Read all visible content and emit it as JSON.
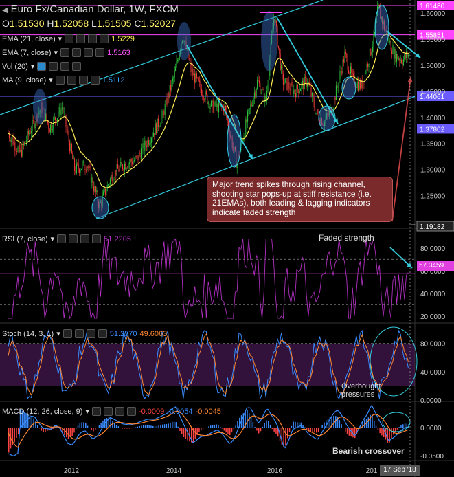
{
  "header": {
    "symbol": "Euro Fx/Canadian Dollar, 1W, FXCM",
    "open_label": "O",
    "open": "1.51530",
    "high_label": "H",
    "high": "1.52058",
    "low_label": "L",
    "low": "1.51505",
    "close_label": "C",
    "close": "1.52027"
  },
  "indicators": {
    "ema21": {
      "label": "EMA (21, close)",
      "value": "1.5229"
    },
    "ema7": {
      "label": "EMA (7, close)",
      "value": "1.5163"
    },
    "vol": {
      "label": "Vol (20)"
    },
    "ma9": {
      "label": "MA (9, close)",
      "value": "1.5112"
    },
    "rsi": {
      "label": "RSI (7, close)",
      "value": "51.2205"
    },
    "stoch": {
      "label": "Stoch (14, 3, 1)",
      "k": "51.2570",
      "d": "49.6063"
    },
    "macd": {
      "label": "MACD (12, 26, close, 9)",
      "v1": "-0.0009",
      "v2": "-0.0054",
      "v3": "-0.0045"
    }
  },
  "price_levels": {
    "l1": "1.61480",
    "l2": "1.55851",
    "l3": "1.44061",
    "l4": "1.37802",
    "bottom": "1.19182"
  },
  "annotations": {
    "callout": "Major trend spikes through rising channel, shooting star pops-up at stiff resistance (i.e. 21EMAs), both leading & lagging indicators indicate faded strength",
    "faded_strength": "Faded strength",
    "overbought": "Overbought\npressures",
    "bearish_crossover": "Bearish crossover",
    "rsi_marker": "57.3459",
    "time_marker": "17 Sep '18"
  },
  "colors": {
    "candle_up": "#2ecc40",
    "candle_down": "#ff3b3b",
    "ema21": "#ffee55",
    "channel": "#33ccdd",
    "resistance": "#ff44ff",
    "support": "#6b5cff",
    "rsi_line": "#b030c0",
    "stoch_k": "#3a8cff",
    "stoch_d": "#ff8833"
  },
  "chart_data": {
    "type": "candlestick",
    "title": "Euro Fx/Canadian Dollar, 1W, FXCM",
    "ylim": [
      1.19,
      1.62
    ],
    "y_ticks": [
      "1.60000",
      "1.55000",
      "1.50000",
      "1.45000",
      "1.40000",
      "1.35000",
      "1.30000",
      "1.25000"
    ],
    "x_ticks": [
      "2012",
      "2014",
      "2016",
      "201"
    ],
    "price_path": [
      [
        "2010-09",
        1.37
      ],
      [
        "2010-12",
        1.33
      ],
      [
        "2011-02",
        1.37
      ],
      [
        "2011-05",
        1.42
      ],
      [
        "2011-07",
        1.38
      ],
      [
        "2011-10",
        1.42
      ],
      [
        "2012-01",
        1.3
      ],
      [
        "2012-04",
        1.31
      ],
      [
        "2012-07",
        1.23
      ],
      [
        "2012-10",
        1.29
      ],
      [
        "2013-01",
        1.31
      ],
      [
        "2013-04",
        1.32
      ],
      [
        "2013-07",
        1.36
      ],
      [
        "2013-10",
        1.4
      ],
      [
        "2014-01",
        1.48
      ],
      [
        "2014-03",
        1.56
      ],
      [
        "2014-05",
        1.49
      ],
      [
        "2014-07",
        1.46
      ],
      [
        "2014-10",
        1.42
      ],
      [
        "2015-01",
        1.42
      ],
      [
        "2015-04",
        1.31
      ],
      [
        "2015-06",
        1.38
      ],
      [
        "2015-09",
        1.47
      ],
      [
        "2015-11",
        1.43
      ],
      [
        "2016-01",
        1.6
      ],
      [
        "2016-03",
        1.47
      ],
      [
        "2016-06",
        1.45
      ],
      [
        "2016-09",
        1.47
      ],
      [
        "2016-11",
        1.41
      ],
      [
        "2017-01",
        1.39
      ],
      [
        "2017-03",
        1.42
      ],
      [
        "2017-06",
        1.52
      ],
      [
        "2017-08",
        1.47
      ],
      [
        "2017-10",
        1.46
      ],
      [
        "2018-01",
        1.55
      ],
      [
        "2018-02",
        1.61
      ],
      [
        "2018-04",
        1.56
      ],
      [
        "2018-06",
        1.52
      ],
      [
        "2018-08",
        1.51
      ],
      [
        "2018-09",
        1.52
      ]
    ],
    "horizontal_levels": [
      1.6148,
      1.55851,
      1.44061,
      1.37802
    ],
    "rsi": {
      "ylim": [
        15,
        95
      ],
      "ticks": [
        "80.0000",
        "60.0000",
        "40.0000",
        "20.0000"
      ],
      "levels": [
        70,
        30
      ],
      "last": 51.2205
    },
    "stoch": {
      "ylim": [
        0,
        105
      ],
      "ticks": [
        "80.0000",
        "40.0000",
        "0.0000"
      ],
      "k_last": 51.257,
      "d_last": 49.6063
    },
    "macd": {
      "ticks": [
        "0.0000",
        "-0.0500"
      ],
      "values": [
        -0.0009,
        -0.0054,
        -0.0045
      ]
    }
  }
}
